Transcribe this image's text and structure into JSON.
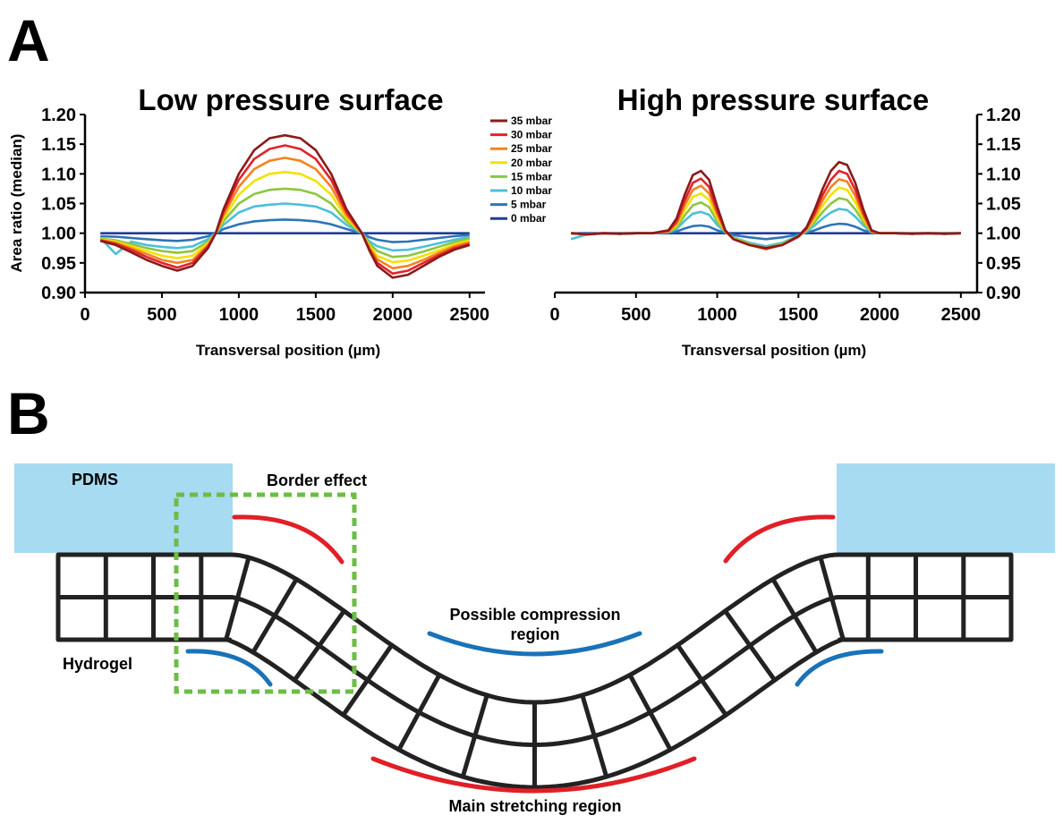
{
  "panel_a": {
    "letter": "A"
  },
  "panel_b": {
    "letter": "B",
    "labels": {
      "pdms": "PDMS",
      "border_effect": "Border effect",
      "compression_line1": "Possible compression",
      "compression_line2": "region",
      "hydrogel": "Hydrogel",
      "stretching": "Main stretching region"
    },
    "colors": {
      "pdms_fill": "#a6dbf1",
      "grid_stroke": "#222222",
      "stretch_arc": "#e01f27",
      "compression_arc": "#1a72b8",
      "border_box": "#6cbd45"
    }
  },
  "chart_data": [
    {
      "type": "line",
      "title": "Low pressure surface",
      "xlabel": "Transversal position (µm)",
      "ylabel": "Area ratio (median)",
      "xlim": [
        0,
        2600
      ],
      "ylim": [
        0.9,
        1.2
      ],
      "xticks": [
        "0",
        "500",
        "1000",
        "1500",
        "2000",
        "2500"
      ],
      "yticks": [
        "0.90",
        "0.95",
        "1.00",
        "1.05",
        "1.10",
        "1.15",
        "1.20"
      ],
      "y_axis_side": "left",
      "legend_position": "top-right",
      "x": [
        100,
        200,
        300,
        400,
        500,
        600,
        700,
        800,
        850,
        900,
        1000,
        1100,
        1200,
        1300,
        1400,
        1500,
        1600,
        1700,
        1800,
        1850,
        1900,
        2000,
        2100,
        2200,
        2300,
        2400,
        2500
      ],
      "series": [
        {
          "name": "35 mbar",
          "color": "#8b1a1a",
          "values": [
            0.987,
            0.98,
            0.968,
            0.955,
            0.945,
            0.937,
            0.945,
            0.975,
            1.0,
            1.04,
            1.1,
            1.14,
            1.16,
            1.165,
            1.16,
            1.14,
            1.1,
            1.04,
            1.0,
            0.97,
            0.945,
            0.925,
            0.93,
            0.945,
            0.96,
            0.972,
            0.98
          ]
        },
        {
          "name": "30 mbar",
          "color": "#e0242b",
          "values": [
            0.988,
            0.982,
            0.972,
            0.96,
            0.95,
            0.942,
            0.95,
            0.978,
            1.0,
            1.035,
            1.09,
            1.125,
            1.142,
            1.148,
            1.142,
            1.125,
            1.09,
            1.035,
            1.0,
            0.972,
            0.95,
            0.932,
            0.937,
            0.95,
            0.963,
            0.975,
            0.982
          ]
        },
        {
          "name": "25 mbar",
          "color": "#f58220",
          "values": [
            0.989,
            0.984,
            0.975,
            0.965,
            0.955,
            0.95,
            0.955,
            0.98,
            1.0,
            1.03,
            1.078,
            1.108,
            1.122,
            1.127,
            1.122,
            1.108,
            1.078,
            1.03,
            1.0,
            0.975,
            0.956,
            0.941,
            0.945,
            0.955,
            0.967,
            0.978,
            0.985
          ]
        },
        {
          "name": "20 mbar",
          "color": "#f2e200",
          "values": [
            0.99,
            0.986,
            0.978,
            0.97,
            0.962,
            0.958,
            0.962,
            0.983,
            1.0,
            1.025,
            1.065,
            1.088,
            1.1,
            1.103,
            1.1,
            1.088,
            1.065,
            1.025,
            1.0,
            0.978,
            0.962,
            0.951,
            0.954,
            0.962,
            0.971,
            0.981,
            0.988
          ]
        },
        {
          "name": "15 mbar",
          "color": "#8dc63f",
          "values": [
            0.991,
            0.988,
            0.982,
            0.975,
            0.97,
            0.967,
            0.97,
            0.986,
            1.0,
            1.02,
            1.05,
            1.066,
            1.073,
            1.075,
            1.073,
            1.066,
            1.05,
            1.02,
            1.0,
            0.982,
            0.97,
            0.96,
            0.962,
            0.969,
            0.977,
            0.985,
            0.991
          ]
        },
        {
          "name": "10 mbar",
          "color": "#4dbfd9",
          "values": [
            0.992,
            0.965,
            0.986,
            0.98,
            0.977,
            0.975,
            0.978,
            0.99,
            1.0,
            1.014,
            1.035,
            1.045,
            1.048,
            1.05,
            1.048,
            1.045,
            1.035,
            1.014,
            1.0,
            0.986,
            0.978,
            0.971,
            0.972,
            0.977,
            0.983,
            0.989,
            0.994
          ]
        },
        {
          "name": "5 mbar",
          "color": "#2e75b6",
          "values": [
            0.995,
            0.994,
            0.992,
            0.99,
            0.988,
            0.987,
            0.989,
            0.995,
            1.0,
            1.007,
            1.015,
            1.02,
            1.022,
            1.023,
            1.022,
            1.02,
            1.015,
            1.007,
            1.0,
            0.993,
            0.989,
            0.985,
            0.986,
            0.989,
            0.992,
            0.995,
            0.997
          ]
        },
        {
          "name": "0 mbar",
          "color": "#1f3d99",
          "values": [
            1.0,
            1.0,
            1.0,
            1.0,
            1.0,
            1.0,
            1.0,
            1.0,
            1.0,
            1.0,
            1.0,
            1.0,
            1.0,
            1.0,
            1.0,
            1.0,
            1.0,
            1.0,
            1.0,
            1.0,
            1.0,
            1.0,
            1.0,
            1.0,
            1.0,
            1.0,
            1.0
          ]
        }
      ]
    },
    {
      "type": "line",
      "title": "High pressure surface",
      "xlabel": "Transversal position (µm)",
      "ylabel": "",
      "xlim": [
        0,
        2600
      ],
      "ylim": [
        0.9,
        1.2
      ],
      "xticks": [
        "0",
        "500",
        "1000",
        "1500",
        "2000",
        "2500"
      ],
      "yticks": [
        "0.90",
        "0.95",
        "1.00",
        "1.05",
        "1.10",
        "1.15",
        "1.20"
      ],
      "y_axis_side": "right",
      "x": [
        100,
        200,
        300,
        400,
        500,
        600,
        700,
        750,
        800,
        850,
        900,
        950,
        1000,
        1050,
        1100,
        1200,
        1300,
        1400,
        1500,
        1550,
        1600,
        1650,
        1700,
        1750,
        1800,
        1850,
        1900,
        1950,
        2000,
        2100,
        2200,
        2300,
        2400,
        2500
      ],
      "series": [
        {
          "name": "35 mbar",
          "color": "#8b1a1a",
          "values": [
            1.0,
            0.998,
            1.0,
            0.999,
            1.0,
            1.0,
            1.005,
            1.025,
            1.065,
            1.098,
            1.105,
            1.09,
            1.045,
            1.005,
            0.99,
            0.98,
            0.975,
            0.98,
            0.995,
            1.01,
            1.04,
            1.075,
            1.105,
            1.12,
            1.115,
            1.085,
            1.04,
            1.005,
            1.0,
            1.0,
            0.999,
            1.0,
            0.999,
            1.0
          ]
        },
        {
          "name": "30 mbar",
          "color": "#e0242b",
          "values": [
            1.0,
            0.998,
            1.0,
            0.999,
            1.0,
            1.0,
            1.004,
            1.02,
            1.055,
            1.085,
            1.092,
            1.078,
            1.038,
            1.004,
            0.99,
            0.98,
            0.974,
            0.98,
            0.994,
            1.008,
            1.034,
            1.065,
            1.09,
            1.105,
            1.1,
            1.073,
            1.034,
            1.004,
            1.0,
            1.0,
            0.999,
            1.0,
            0.999,
            1.0
          ]
        },
        {
          "name": "25 mbar",
          "color": "#f58220",
          "values": [
            1.0,
            0.998,
            1.0,
            0.999,
            1.0,
            1.0,
            1.003,
            1.016,
            1.047,
            1.073,
            1.08,
            1.067,
            1.032,
            1.003,
            0.99,
            0.98,
            0.973,
            0.98,
            0.994,
            1.007,
            1.029,
            1.056,
            1.078,
            1.091,
            1.087,
            1.063,
            1.029,
            1.003,
            1.0,
            1.0,
            0.999,
            1.0,
            0.999,
            1.0
          ]
        },
        {
          "name": "20 mbar",
          "color": "#f2e200",
          "values": [
            1.0,
            0.998,
            1.0,
            0.999,
            1.0,
            1.0,
            1.003,
            1.013,
            1.039,
            1.061,
            1.067,
            1.056,
            1.026,
            1.003,
            0.991,
            0.981,
            0.973,
            0.981,
            0.994,
            1.006,
            1.024,
            1.047,
            1.065,
            1.077,
            1.073,
            1.052,
            1.024,
            1.003,
            1.0,
            1.0,
            0.999,
            1.0,
            0.999,
            1.0
          ]
        },
        {
          "name": "15 mbar",
          "color": "#8dc63f",
          "values": [
            1.0,
            0.998,
            1.0,
            0.999,
            1.0,
            1.0,
            1.002,
            1.01,
            1.03,
            1.047,
            1.052,
            1.044,
            1.02,
            1.002,
            0.992,
            0.982,
            0.975,
            0.982,
            0.995,
            1.005,
            1.019,
            1.036,
            1.05,
            1.059,
            1.056,
            1.04,
            1.019,
            1.002,
            1.0,
            1.0,
            0.999,
            1.0,
            0.999,
            1.0
          ]
        },
        {
          "name": "10 mbar",
          "color": "#4dbfd9",
          "values": [
            0.99,
            0.998,
            1.0,
            0.999,
            1.0,
            1.0,
            1.002,
            1.007,
            1.021,
            1.033,
            1.036,
            1.031,
            1.014,
            1.002,
            0.993,
            0.984,
            0.978,
            0.984,
            0.996,
            1.003,
            1.013,
            1.025,
            1.035,
            1.041,
            1.039,
            1.028,
            1.013,
            1.002,
            1.0,
            1.0,
            0.999,
            1.0,
            0.999,
            1.0
          ]
        },
        {
          "name": "5 mbar",
          "color": "#2e75b6",
          "values": [
            1.0,
            0.999,
            1.0,
            1.0,
            1.0,
            1.0,
            1.001,
            1.003,
            1.008,
            1.012,
            1.013,
            1.011,
            1.005,
            1.001,
            0.997,
            0.993,
            0.99,
            0.993,
            0.998,
            1.001,
            1.005,
            1.01,
            1.014,
            1.016,
            1.015,
            1.011,
            1.005,
            1.001,
            1.0,
            1.0,
            1.0,
            1.0,
            1.0,
            1.0
          ]
        },
        {
          "name": "0 mbar",
          "color": "#1f3d99",
          "values": [
            1.0,
            1.0,
            1.0,
            1.0,
            1.0,
            1.0,
            1.0,
            1.0,
            1.0,
            1.0,
            1.0,
            1.0,
            1.0,
            1.0,
            1.0,
            1.0,
            1.0,
            1.0,
            1.0,
            1.0,
            1.0,
            1.0,
            1.0,
            1.0,
            1.0,
            1.0,
            1.0,
            1.0,
            1.0,
            1.0,
            1.0,
            1.0,
            1.0,
            1.0
          ]
        }
      ]
    }
  ]
}
